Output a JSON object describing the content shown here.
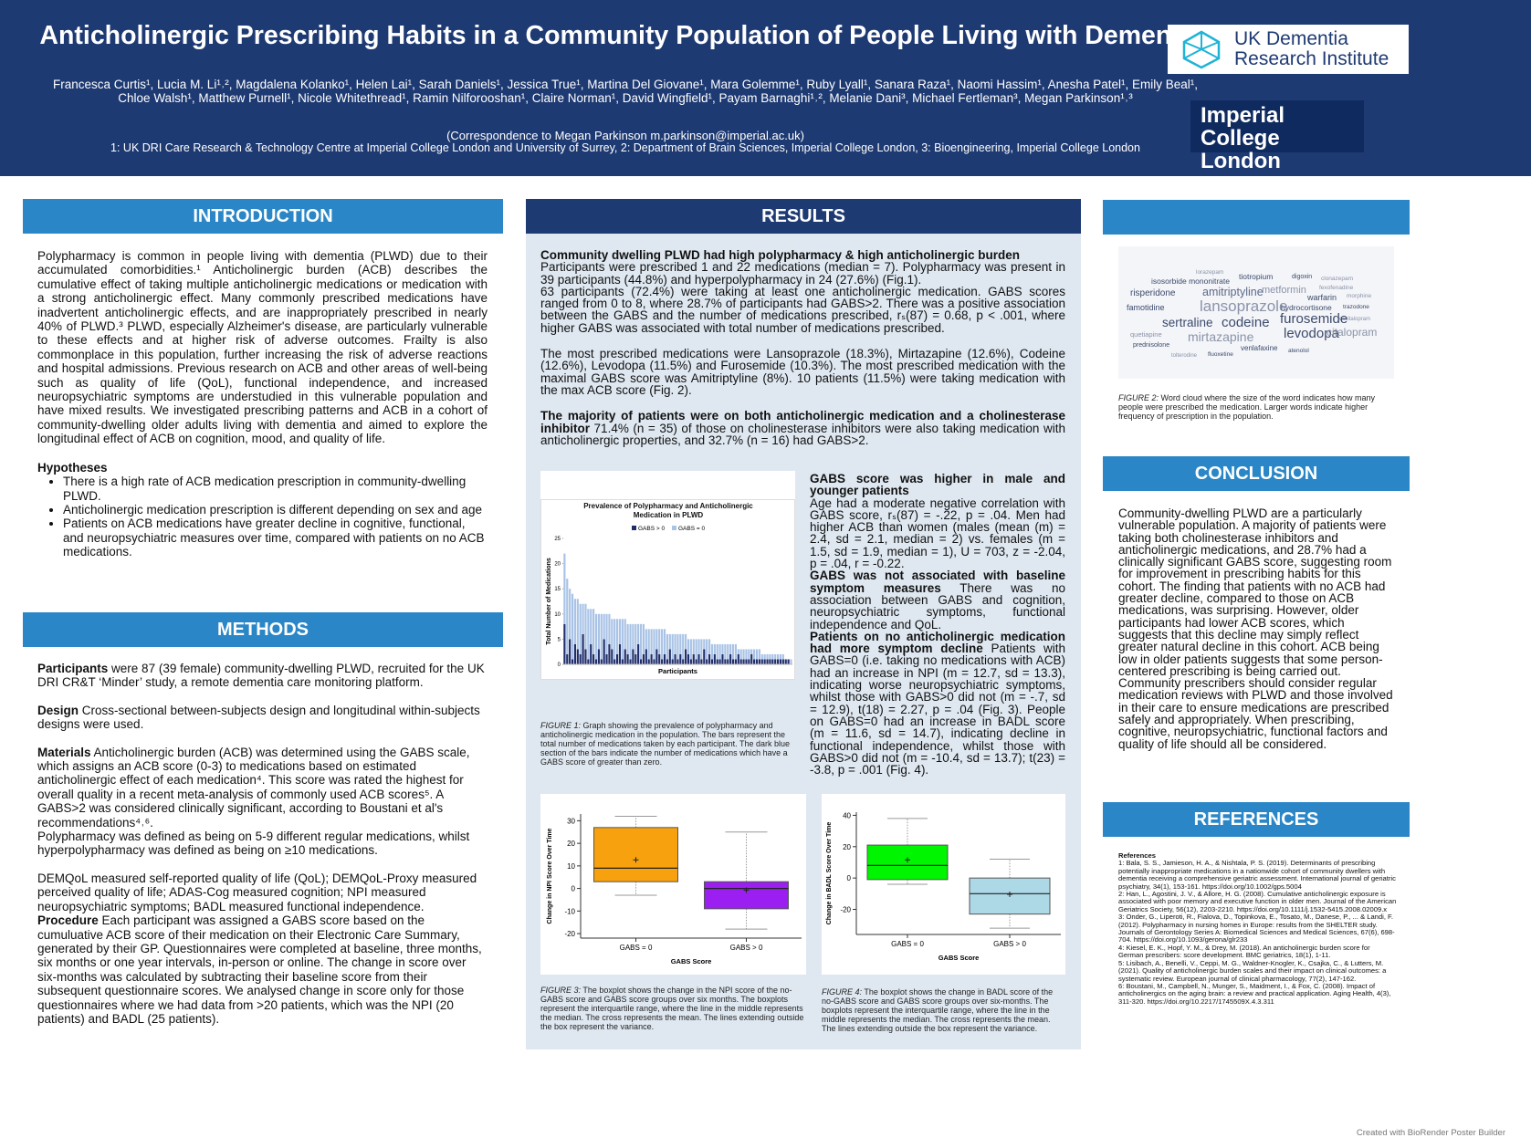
{
  "header": {
    "title": "Anticholinergic Prescribing Habits in a Community Population of People Living with Dementia",
    "authors": "Francesca Curtis¹, Lucia M. Li¹˒², Magdalena Kolanko¹, Helen Lai¹, Sarah Daniels¹, Jessica True¹, Martina Del Giovane¹, Mara Golemme¹, Ruby Lyall¹, Sanara Raza¹, Naomi Hassim¹, Anesha Patel¹, Emily Beal¹, Chloe Walsh¹, Matthew Purnell¹, Nicole Whitethread¹, Ramin Nilforooshan¹, Claire Norman¹, David Wingfield¹, Payam Barnaghi¹˒², Melanie Dani³, Michael Fertleman³, Megan Parkinson¹˒³",
    "correspondence": "(Correspondence to Megan Parkinson m.parkinson@imperial.ac.uk)",
    "affiliations": "1: UK DRI Care Research & Technology Centre at Imperial College London and University of Surrey, 2: Department of Brain Sciences, Imperial College London, 3: Bioengineering, Imperial College London",
    "logo_dri": [
      "UK Dementia",
      "Research Institute"
    ],
    "logo_imperial": [
      "Imperial College",
      "London"
    ]
  },
  "introduction": {
    "heading": "INTRODUCTION",
    "body": "Polypharmacy is common in people living with dementia (PLWD) due to their accumulated comorbidities.¹ Anticholinergic burden (ACB) describes the cumulative effect of taking multiple anticholinergic medications or medication with a strong anticholinergic effect. Many commonly prescribed medications have inadvertent anticholinergic effects, and are inappropriately prescribed in nearly 40% of PLWD.³ PLWD, especially Alzheimer's disease, are particularly vulnerable to these effects and at higher risk of adverse outcomes. Frailty is also commonplace in this population, further increasing the risk of adverse reactions and hospital admissions. Previous research on ACB and other areas of well-being such as quality of life (QoL), functional independence, and increased neuropsychiatric symptoms are understudied in this vulnerable population and have mixed results. We investigated prescribing patterns and ACB in a cohort of community-dwelling older adults living with dementia and aimed to explore the longitudinal effect of ACB on cognition, mood, and quality of life.",
    "hypotheses_heading": "Hypotheses",
    "hypotheses": [
      "There is a high rate of ACB medication prescription in community-dwelling PLWD.",
      "Anticholinergic medication prescription is different depending on sex and age",
      "Patients on ACB medications have greater decline in cognitive, functional, and neuropsychiatric measures over time, compared with patients on no ACB medications."
    ]
  },
  "methods": {
    "heading": "METHODS",
    "blocks": [
      [
        {
          "lead": "Participants",
          "text": "were 87 (39 female) community-dwelling PLWD, recruited for the UK DRI CR&T ‘Minder’ study, a remote dementia care monitoring platform."
        }
      ],
      [
        {
          "lead": "Design",
          "text": "Cross-sectional between-subjects design and longitudinal within-subjects designs were used."
        }
      ],
      [
        {
          "lead": "Materials",
          "text": "Anticholinergic burden (ACB) was determined using the GABS scale, which assigns an ACB score (0-3) to medications based on estimated anticholinergic effect of each medication⁴. This score was rated the highest for overall quality in a recent meta-analysis of commonly used ACB scores⁵. A GABS>2 was considered clinically significant, according to Boustani et al's recommendations⁴˒⁶."
        },
        {
          "text": "Polypharmacy was defined as being on  5-9 different regular medications, whilst hyperpolypharmacy was defined as being on ≥10 medications."
        }
      ],
      [
        {
          "text": "DEMQoL measured self-reported quality of life (QoL); DEMQoL-Proxy measured perceived quality of life; ADAS-Cog measured cognition; NPI measured neuropsychiatric symptoms; BADL measured functional independence."
        },
        {
          "lead": "Procedure",
          "text": "Each participant was assigned a GABS score based on the cumuluative ACB score of their medication on their Electronic Care Summary, generated by their GP. Questionnaires were completed at baseline, three months, six months or one year intervals, in-person or online. The change in score over six-months was calculated by subtracting their baseline score from their subsequent questionnaire scores.  We analysed change in score only for those questionnaires where we had data from >20 patients, which was the NPI (20 patients) and BADL (25 patients)."
        }
      ]
    ]
  },
  "results": {
    "heading": "RESULTS",
    "blocks": [
      [
        {
          "lead": "Community dwelling PLWD had high polypharmacy & high anticholinergic burden"
        },
        {
          "text": "Participants were prescribed 1 and 22 medications (median = 7). Polypharmacy was present in 39 participants (44.8%) and hyperpolypharmacy in 24 (27.6%) (Fig.1)."
        },
        {
          "text": "63 participants (72.4%) were taking at least one anticholinergic medication. GABS scores ranged from 0 to 8, where 28.7% of participants had GABS>2. There was a positive association between the GABS  and the number of medications prescribed, rₛ(87) = 0.68, p < .001, where higher GABS was associated with total number of medications prescribed."
        }
      ],
      [
        {
          "text": "The most prescribed  medications  were Lansoprazole (18.3%), Mirtazapine (12.6%), Codeine (12.6%), Levodopa (11.5%) and Furosemide (10.3%). The most prescribed medication with the maximal GABS score was Amitriptyline (8%). 10 patients (11.5%) were taking medication with the max ACB score (Fig. 2)."
        }
      ],
      [
        {
          "lead": "The majority of patients were on both anticholinergic medication and a cholinesterase inhibitor",
          "text": "71.4% (n = 35) of those on cholinesterase inhibitors were also taking medication with anticholinergic properties, and 32.7% (n = 16) had GABS>2."
        }
      ]
    ],
    "side": [
      {
        "lead": "GABS score was higher in male and younger patients"
      },
      {
        "text": "Age had a moderate negative correlation with GABS score, rₛ(87) = -.22, p = .04. Men had higher ACB than women (males (mean (m) = 2.4, sd = 2.1, median = 2) vs. females (m = 1.5, sd = 1.9, median = 1), U = 703, z = -2.04, p = .04, r = -0.22."
      },
      {
        "lead": "GABS was not associated with baseline symptom measures",
        "text": "There was no association between GABS and cognition, neuropsychiatric symptoms, functional independence and QoL."
      },
      {
        "lead": "Patients on no anticholinergic medication had more symptom decline",
        "text": "Patients with GABS=0 (i.e. taking no medications with ACB) had an increase in NPI (m = 12.7, sd = 13.3), indicating worse neuropsychiatric symptoms, whilst those with GABS>0 did not (m = -.7, sd = 12.9), t(18) = 2.27, p = .04 (Fig. 3). People on GABS=0 had an increase in BADL score (m = 11.6, sd = 14.7), indicating decline in functional independence, whilst those with GABS>0 did not (m = -10.4, sd = 13.7);  t(23) = -3.8, p = .001 (Fig. 4)."
      }
    ],
    "captions": [
      {
        "label": "FIGURE 1:",
        "text": "Graph showing the prevalence of polypharmacy and anticholinergic medication in the population. The bars represent the total number of medications taken by each participant. The dark blue section of the bars indicate the number of medications which have a GABS score of greater than zero."
      },
      {
        "label": "FIGURE 3:",
        "text": "The boxplot shows the change in the NPI score of the no-GABS score and GABS score groups over six months. The boxplots represent the interquartile range, where the line in the middle represents the median. The cross represents the mean. The lines extending outside the box represent the variance."
      },
      {
        "label": "FIGURE 4:",
        "text": "The boxplot shows the change in BADL score of the no-GABS score and GABS score groups over six-months. The boxplots represent the interquartile range, where the line in the middle represents the median. The cross represents the mean. The lines extending outside the box represent the variance."
      }
    ]
  },
  "chart_data": [
    {
      "type": "bar",
      "stacked": true,
      "title": "Prevalence of Polypharmacy and Anticholinergic Medication in PLWD",
      "x_label": "Participants",
      "y_label": "Total Number of Medications",
      "ylim": [
        0,
        25
      ],
      "yticks": [
        0,
        5,
        10,
        15,
        20,
        25
      ],
      "series": [
        {
          "name": "GABS > 0",
          "color": "#1f2d6b",
          "values": [
            8,
            2,
            5,
            1,
            4,
            3,
            2,
            6,
            3,
            1,
            4,
            2,
            1,
            3,
            1,
            5,
            2,
            4,
            3,
            1,
            2,
            4,
            1,
            3,
            2,
            1,
            3,
            2,
            4,
            1,
            2,
            3,
            1,
            2,
            1,
            3,
            2,
            1,
            2,
            1,
            3,
            1,
            2,
            1,
            2,
            1,
            3,
            2,
            1,
            2,
            1,
            2,
            1,
            3,
            1,
            2,
            1,
            2,
            1,
            1,
            2,
            1,
            1,
            2,
            1,
            1,
            2,
            1,
            1,
            1,
            1,
            2,
            1,
            1,
            1,
            1,
            1,
            1,
            1,
            1,
            1,
            1,
            1,
            1,
            1,
            1,
            0
          ]
        },
        {
          "name": "GABS = 0",
          "color": "#a9c3e6",
          "values": [
            14,
            15,
            10,
            13,
            9,
            10,
            10,
            6,
            9,
            10,
            7,
            9,
            9,
            7,
            9,
            5,
            8,
            6,
            6,
            8,
            7,
            5,
            8,
            6,
            6,
            7,
            5,
            6,
            4,
            7,
            6,
            4,
            6,
            5,
            6,
            4,
            5,
            6,
            5,
            5,
            3,
            5,
            4,
            5,
            4,
            5,
            3,
            3,
            4,
            3,
            4,
            3,
            4,
            2,
            4,
            3,
            3,
            2,
            3,
            3,
            2,
            3,
            3,
            2,
            3,
            3,
            1,
            2,
            2,
            2,
            2,
            1,
            2,
            2,
            2,
            1,
            1,
            1,
            1,
            1,
            1,
            1,
            1,
            1,
            0,
            0,
            1
          ]
        }
      ]
    },
    {
      "type": "box",
      "x_label": "GABS Score",
      "y_label": "Change in NPI Score Over Time",
      "categories": [
        "GABS = 0",
        "GABS > 0"
      ],
      "ylim": [
        -22,
        33
      ],
      "yticks": [
        -20,
        -10,
        0,
        10,
        20,
        30
      ],
      "boxes": [
        {
          "color": "#f7a10e",
          "whisker_low": -3,
          "q1": 3,
          "median": 9,
          "q3": 27,
          "whisker_high": 32,
          "mean": 12.7
        },
        {
          "color": "#9a1ff0",
          "whisker_low": -18,
          "q1": -9,
          "median": 0,
          "q3": 3,
          "whisker_high": 25,
          "mean": -0.7
        }
      ]
    },
    {
      "type": "box",
      "x_label": "GABS Score",
      "y_label": "Change in BADL Score Over Time",
      "categories": [
        "GABS = 0",
        "GABS > 0"
      ],
      "ylim": [
        -36,
        42
      ],
      "yticks": [
        -20,
        0,
        20,
        40
      ],
      "boxes": [
        {
          "color": "#00f500",
          "whisker_low": -4,
          "q1": -1,
          "median": 8,
          "q3": 21,
          "whisker_high": 38,
          "mean": 11.6
        },
        {
          "color": "#add8e6",
          "whisker_low": -32,
          "q1": -23,
          "median": -10,
          "q3": 0,
          "whisker_high": 12,
          "mean": -10.4
        }
      ]
    }
  ],
  "word_cloud": {
    "words": [
      "lorazepam",
      "isosorbide mononitrate",
      "tiotropium",
      "digoxin",
      "clonazepam",
      "risperidone",
      "amitriptyline",
      "metformin",
      "fexofenadine",
      "warfarin",
      "morphine",
      "famotidine",
      "lansoprazole",
      "hydrocortisone",
      "trazodone",
      "escitalopram",
      "sertraline",
      "codeine",
      "furosemide",
      "quetiapine",
      "mirtazapine",
      "levodopa",
      "citalopram",
      "prednisolone",
      "venlafaxine",
      "atenolol",
      "tolterodine",
      "fluoxetine"
    ],
    "caption_label": "FIGURE 2:",
    "caption": "Word cloud where the size of the word indicates how many people were prescribed the medication. Larger words indicate higher frequency of prescription in the population."
  },
  "conclusion": {
    "heading": "CONCLUSION",
    "text": "Community-dwelling PLWD are a particularly vulnerable population. A majority of patients were taking both cholinesterase inhibitors and anticholinergic medications, and 28.7% had a clinically significant GABS score, suggesting room for improvement in prescribing habits for this cohort. The finding that patients with no ACB had greater decline, compared to those on ACB medications, was surprising. However, older participants had lower ACB scores, which suggests that this decline may simply reflect greater natural decline in this cohort. ACB being low in older patients suggests that some person-centered prescribing is being carried out. Community prescribers should consider regular medication reviews with PLWD and those involved in their care to ensure medications are prescribed safely and appropriately. When prescribing, cognitive, neuropsychiatric, functional factors and quality of life should all be considered."
  },
  "references": {
    "heading": "REFERENCES",
    "title": "References",
    "items": [
      "1: Bala, S. S., Jamieson, H. A., & Nishtala, P. S. (2019). Determinants of prescribing potentially inappropriate medications in a nationwide cohort of community dwellers with dementia receiving a comprehensive geriatric assessment. International journal of geriatric psychiatry, 34(1), 153-161. https://doi.org/10.1002/gps.5004",
      "2: Han, L., Agostini, J. V., & Allore, H. G. (2008). Cumulative anticholinergic exposure is associated with poor memory and executive function in older men. Journal of the American Geriatrics Society, 56(12), 2203-2210. https://doi.org/10.1111/j.1532-5415.2008.02009.x",
      "3: Onder, G., Liperoti, R., Fialova, D., Topinkova, E., Tosato, M., Danese, P., ... & Landi, F. (2012). Polypharmacy in nursing homes in Europe: results from the SHELTER study. Journals of Gerontology Series A: Biomedical Sciences and Medical Sciences, 67(6), 698-704. https://doi.org/10.1093/gerona/glr233",
      "4: Kiesel, E. K., Hopf, Y. M., & Drey, M. (2018). An anticholinergic burden score for German prescribers: score development. BMC geriatrics, 18(1), 1-11.",
      "5: Lisibach, A., Benelli, V., Ceppi, M. G., Waldner-Knogler, K., Csajka, C., & Lutters, M. (2021). Quality of anticholinergic burden scales and their impact on clinical outcomes: a systematic review. European journal of clinical pharmacology, 77(2), 147-162.",
      "6: Boustani, M., Campbell, N., Munger, S., Maidment, I., & Fox, C. (2008). Impact of anticholinergics on the aging brain: a review and practical application. Aging Health, 4(3), 311-320. https://doi.org/10.2217/1745509X.4.3.311"
    ]
  },
  "footer": "Created with BioRender Poster Builder"
}
